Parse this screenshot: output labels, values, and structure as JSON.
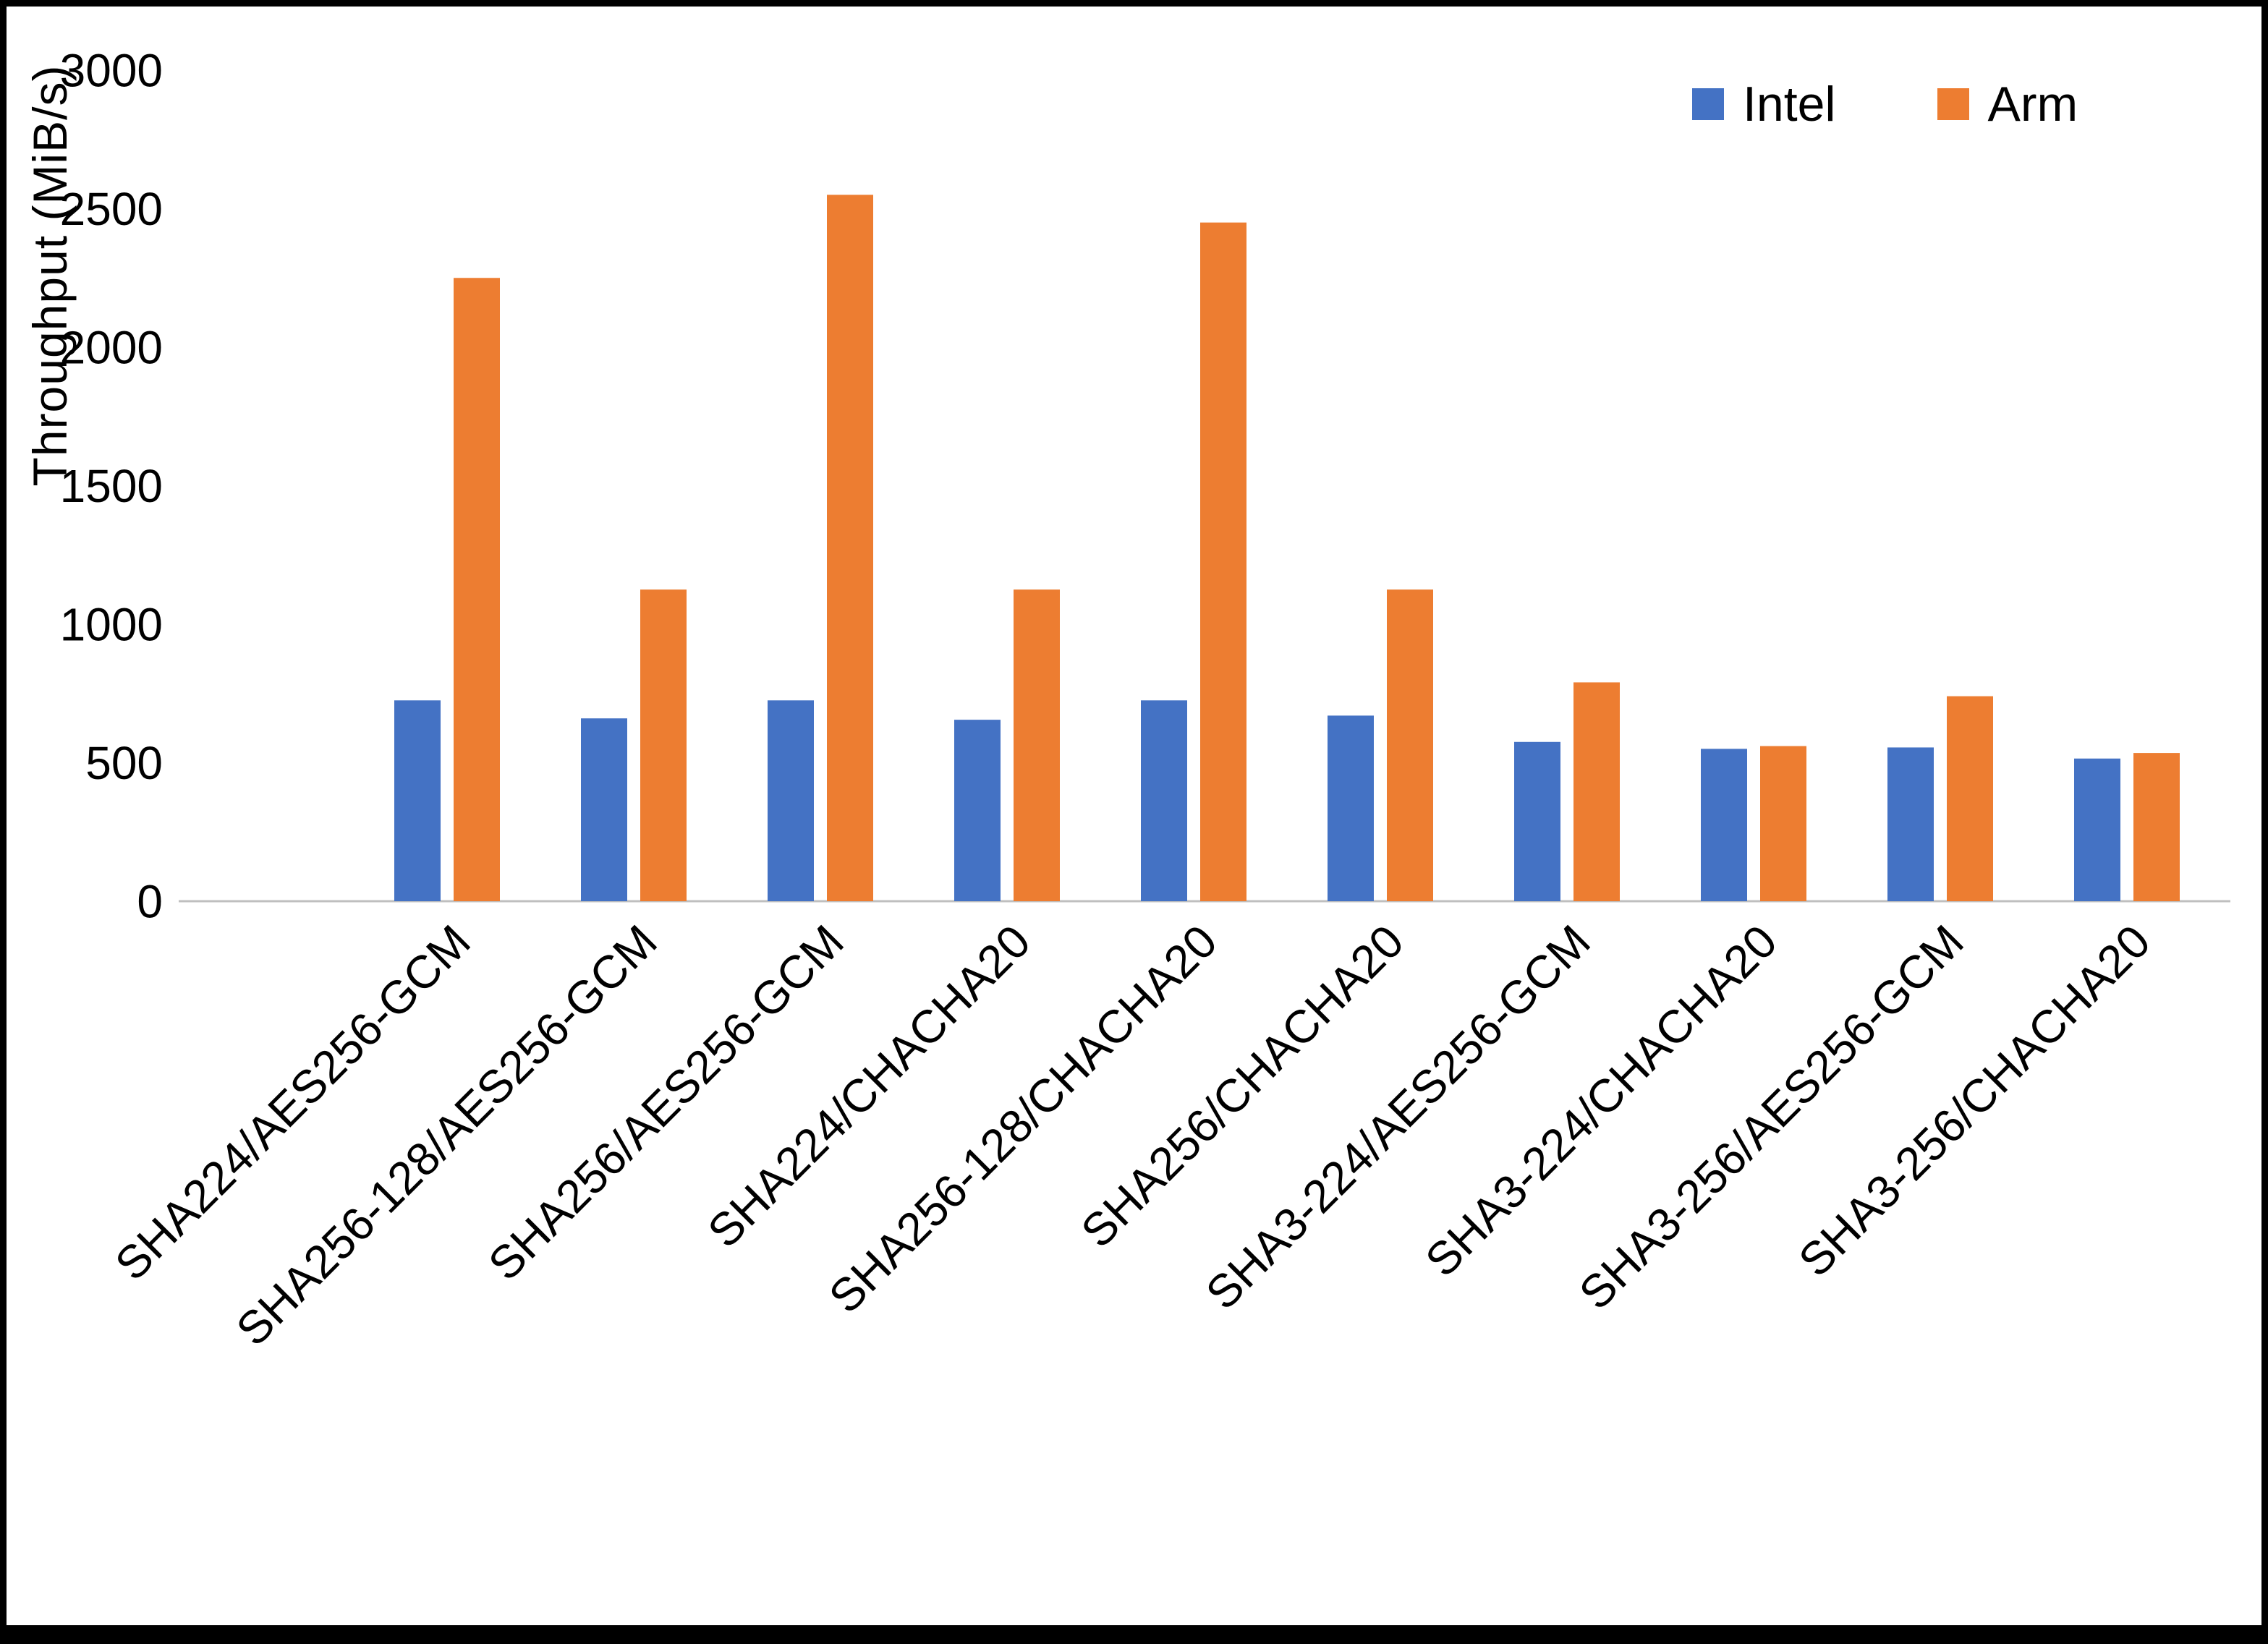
{
  "chart_data": {
    "type": "bar",
    "title": "",
    "ylabel": "Throughput (MiB/s)",
    "xlabel": "",
    "ylim": [
      0,
      3000
    ],
    "y_ticks": [
      0,
      500,
      1000,
      1500,
      2000,
      2500,
      3000
    ],
    "grid": false,
    "legend_position": "top-right",
    "categories": [
      "SHA224/AES256-GCM",
      "SHA256-128/AES256-GCM",
      "SHA256/AES256-GCM",
      "SHA224/CHACHA20",
      "SHA256-128/CHACHA20",
      "SHA256/CHACHA20",
      "SHA3-224/AES256-GCM",
      "SHA3-224/CHACHA20",
      "SHA3-256/AES256-GCM",
      "SHA3-256/CHACHA20"
    ],
    "series": [
      {
        "name": "Intel",
        "color": "#4472C4",
        "values": [
          725,
          660,
          725,
          655,
          725,
          670,
          575,
          550,
          555,
          515
        ]
      },
      {
        "name": "Arm",
        "color": "#ED7D31",
        "values": [
          2250,
          1125,
          2550,
          1125,
          2450,
          1125,
          790,
          560,
          740,
          535
        ]
      }
    ]
  }
}
